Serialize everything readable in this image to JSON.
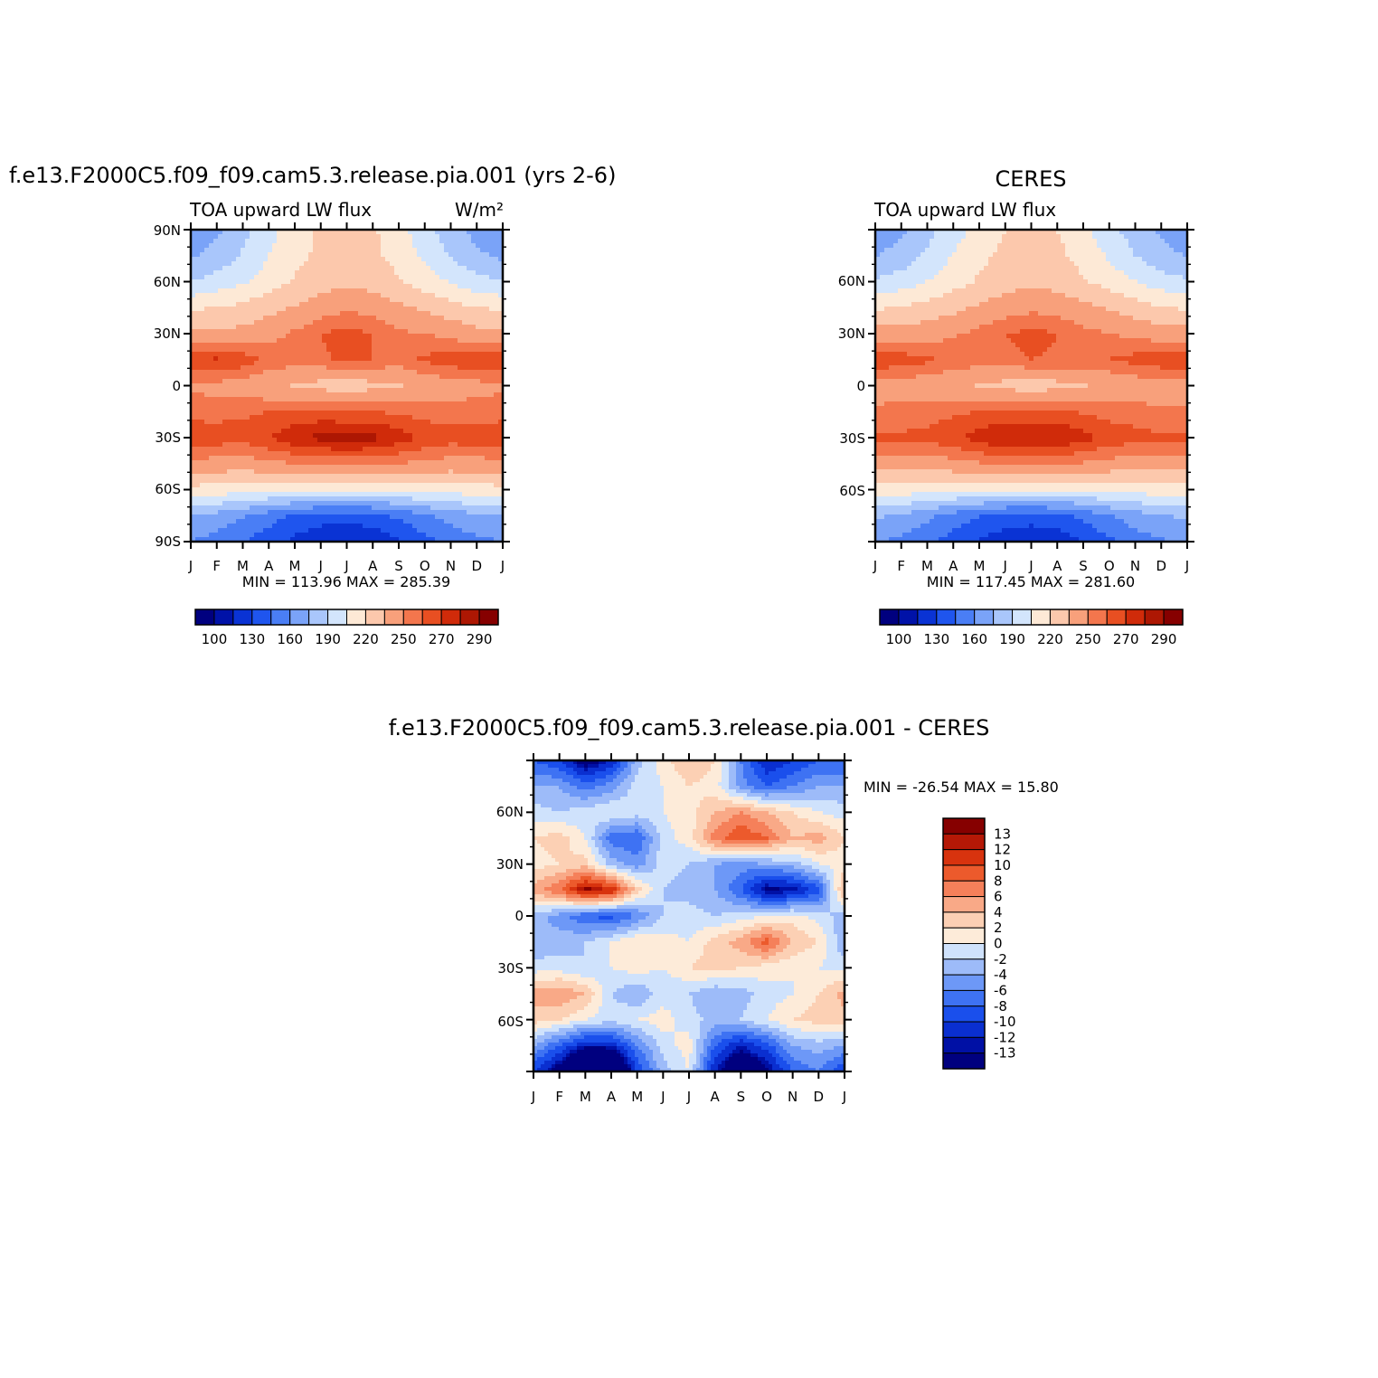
{
  "months": [
    "J",
    "F",
    "M",
    "A",
    "M",
    "J",
    "J",
    "A",
    "S",
    "O",
    "N",
    "D",
    "J"
  ],
  "colors": {
    "abs": [
      "#00007f",
      "#0012a8",
      "#0a33d4",
      "#1f55ee",
      "#4a7ef5",
      "#7aa3f8",
      "#a9c6fb",
      "#d3e5fc",
      "#fde9d6",
      "#fcc8ac",
      "#f8a07b",
      "#f3764d",
      "#e84f22",
      "#d02b0a",
      "#ad1703",
      "#860000"
    ],
    "diff": [
      "#00007f",
      "#0010a5",
      "#0a2fd0",
      "#1a4fec",
      "#3e72f3",
      "#6d98f7",
      "#9dbbf9",
      "#cfe2fc",
      "#fdebd9",
      "#fcd0b4",
      "#f9a987",
      "#f5805a",
      "#ec5a2c",
      "#d8330e",
      "#b51806",
      "#860000"
    ]
  },
  "panels": [
    {
      "id": "model",
      "title": "f.e13.F2000C5.f09_f09.cam5.3.release.pia.001 (yrs 2-6)",
      "left_label": "TOA upward LW flux",
      "units": "W/m²",
      "y_ticks": [
        "90N",
        "60N",
        "30N",
        "0",
        "30S",
        "60S",
        "90S"
      ],
      "stats": "MIN = 113.96 MAX = 285.39",
      "colorbar_labels": [
        "100",
        "130",
        "160",
        "190",
        "220",
        "250",
        "270",
        "290"
      ]
    },
    {
      "id": "ceres",
      "title": "CERES",
      "left_label": "TOA upward LW flux",
      "units": "",
      "y_ticks": [
        "60N",
        "30N",
        "0",
        "30S",
        "60S"
      ],
      "stats": "MIN = 117.45 MAX = 281.60",
      "colorbar_labels": [
        "100",
        "130",
        "160",
        "190",
        "220",
        "250",
        "270",
        "290"
      ]
    },
    {
      "id": "diff",
      "title": "f.e13.F2000C5.f09_f09.cam5.3.release.pia.001 - CERES",
      "y_ticks": [
        "60N",
        "30N",
        "0",
        "30S",
        "60S"
      ],
      "stats": "MIN = -26.54 MAX = 15.80",
      "colorbar_labels": [
        "13",
        "12",
        "10",
        "8",
        "6",
        "4",
        "2",
        "0",
        "-2",
        "-4",
        "-6",
        "-8",
        "-10",
        "-12",
        "-13"
      ]
    }
  ],
  "chart_data": [
    {
      "type": "heatmap",
      "title": "f.e13.F2000C5.f09_f09.cam5.3.release.pia.001 (yrs 2-6)",
      "variable": "TOA upward LW flux",
      "units": "W/m²",
      "x": [
        "J",
        "F",
        "M",
        "A",
        "M",
        "J",
        "J",
        "A",
        "S",
        "O",
        "N",
        "D",
        "J"
      ],
      "y": [
        90,
        75,
        60,
        45,
        30,
        15,
        0,
        -15,
        -30,
        -45,
        -60,
        -75,
        -90
      ],
      "ylim": [
        -90,
        90
      ],
      "levels": [
        100,
        115,
        130,
        145,
        160,
        175,
        190,
        205,
        220,
        235,
        250,
        260,
        270,
        280,
        290
      ],
      "min": 113.96,
      "max": 285.39,
      "values": [
        [
          163,
          172,
          185,
          200,
          212,
          222,
          225,
          222,
          210,
          196,
          182,
          170,
          163
        ],
        [
          172,
          180,
          192,
          205,
          215,
          224,
          228,
          224,
          214,
          202,
          189,
          178,
          172
        ],
        [
          190,
          196,
          203,
          212,
          222,
          228,
          232,
          229,
          222,
          213,
          204,
          195,
          190
        ],
        [
          218,
          220,
          224,
          230,
          236,
          243,
          248,
          245,
          238,
          232,
          226,
          220,
          218
        ],
        [
          238,
          238,
          240,
          245,
          252,
          260,
          264,
          260,
          252,
          250,
          246,
          240,
          238
        ],
        [
          268,
          272,
          266,
          258,
          255,
          258,
          262,
          260,
          256,
          262,
          266,
          268,
          268
        ],
        [
          248,
          246,
          244,
          238,
          234,
          230,
          228,
          230,
          234,
          240,
          244,
          246,
          248
        ],
        [
          255,
          256,
          258,
          260,
          262,
          262,
          260,
          260,
          258,
          256,
          254,
          255,
          255
        ],
        [
          268,
          266,
          264,
          270,
          278,
          283,
          285,
          283,
          276,
          268,
          265,
          266,
          268
        ],
        [
          246,
          245,
          244,
          247,
          250,
          252,
          253,
          252,
          250,
          247,
          245,
          245,
          246
        ],
        [
          215,
          214,
          212,
          210,
          208,
          206,
          205,
          206,
          208,
          210,
          212,
          214,
          215
        ],
        [
          175,
          170,
          162,
          152,
          143,
          138,
          137,
          140,
          148,
          158,
          166,
          172,
          175
        ],
        [
          160,
          154,
          146,
          136,
          126,
          118,
          114,
          118,
          128,
          140,
          150,
          156,
          160
        ]
      ]
    },
    {
      "type": "heatmap",
      "title": "CERES",
      "variable": "TOA upward LW flux",
      "x": [
        "J",
        "F",
        "M",
        "A",
        "M",
        "J",
        "J",
        "A",
        "S",
        "O",
        "N",
        "D",
        "J"
      ],
      "y": [
        90,
        75,
        60,
        45,
        30,
        15,
        0,
        -15,
        -30,
        -45,
        -60,
        -75,
        -90
      ],
      "ylim": [
        -90,
        90
      ],
      "levels": [
        100,
        115,
        130,
        145,
        160,
        175,
        190,
        205,
        220,
        235,
        250,
        260,
        270,
        280,
        290
      ],
      "min": 117.45,
      "max": 281.6,
      "values": [
        [
          165,
          172,
          185,
          198,
          210,
          220,
          224,
          220,
          208,
          195,
          182,
          172,
          165
        ],
        [
          174,
          181,
          193,
          206,
          216,
          224,
          228,
          224,
          214,
          203,
          190,
          180,
          174
        ],
        [
          192,
          197,
          205,
          214,
          222,
          229,
          232,
          229,
          222,
          214,
          205,
          197,
          192
        ],
        [
          218,
          221,
          225,
          231,
          237,
          243,
          247,
          245,
          239,
          233,
          227,
          221,
          218
        ],
        [
          242,
          242,
          244,
          248,
          254,
          260,
          263,
          260,
          254,
          250,
          247,
          243,
          242
        ],
        [
          268,
          266,
          262,
          258,
          256,
          258,
          260,
          259,
          257,
          260,
          264,
          267,
          268
        ],
        [
          245,
          244,
          242,
          238,
          234,
          230,
          228,
          230,
          234,
          238,
          242,
          244,
          245
        ],
        [
          252,
          253,
          255,
          258,
          260,
          262,
          262,
          262,
          259,
          256,
          254,
          252,
          252
        ],
        [
          262,
          262,
          263,
          268,
          275,
          280,
          281,
          280,
          274,
          267,
          264,
          262,
          262
        ],
        [
          244,
          244,
          244,
          246,
          249,
          251,
          252,
          251,
          249,
          246,
          244,
          244,
          244
        ],
        [
          214,
          213,
          212,
          210,
          208,
          206,
          205,
          206,
          208,
          210,
          212,
          213,
          214
        ],
        [
          178,
          172,
          164,
          154,
          146,
          140,
          138,
          141,
          149,
          159,
          168,
          174,
          178
        ],
        [
          162,
          156,
          148,
          138,
          128,
          120,
          117,
          120,
          130,
          142,
          152,
          158,
          162
        ]
      ]
    },
    {
      "type": "heatmap",
      "title": "f.e13.F2000C5.f09_f09.cam5.3.release.pia.001 - CERES",
      "x": [
        "J",
        "F",
        "M",
        "A",
        "M",
        "J",
        "J",
        "A",
        "S",
        "O",
        "N",
        "D",
        "J"
      ],
      "y": [
        90,
        75,
        60,
        45,
        30,
        15,
        0,
        -15,
        -30,
        -45,
        -60,
        -75,
        -90
      ],
      "ylim": [
        -90,
        90
      ],
      "levels": [
        -13,
        -12,
        -10,
        -8,
        -6,
        -4,
        -2,
        0,
        2,
        4,
        6,
        8,
        10,
        12,
        13
      ],
      "min": -26.54,
      "max": 15.8,
      "values": [
        [
          -8,
          -10,
          -15,
          -12,
          -3,
          1,
          4,
          2,
          -6,
          -12,
          -10,
          -8,
          -8
        ],
        [
          -4,
          -4,
          -7,
          -5,
          -1,
          0,
          2,
          1,
          -5,
          -8,
          -6,
          -4,
          -4
        ],
        [
          -1,
          -2,
          -1,
          0,
          -1,
          0,
          1,
          4,
          6,
          4,
          2,
          0,
          -1
        ],
        [
          2,
          3,
          0,
          -7,
          -8,
          -1,
          1,
          7,
          10,
          8,
          4,
          5,
          2
        ],
        [
          1,
          2,
          3,
          -3,
          -5,
          -1,
          -2,
          -4,
          -5,
          -4,
          -3,
          0,
          1
        ],
        [
          5,
          8,
          14,
          12,
          3,
          -2,
          -3,
          -4,
          -8,
          -14,
          -13,
          -9,
          5
        ],
        [
          -3,
          -5,
          -8,
          -9,
          -6,
          -2,
          -1,
          -2,
          -1,
          0,
          1,
          -1,
          -3
        ],
        [
          -4,
          -3,
          -2,
          0,
          2,
          1,
          0,
          3,
          5,
          9,
          4,
          2,
          -4
        ],
        [
          -1,
          -1,
          -2,
          0,
          1,
          0,
          2,
          3,
          2,
          1,
          0,
          0,
          -1
        ],
        [
          5,
          6,
          4,
          -2,
          -4,
          -1,
          -2,
          -4,
          -3,
          -1,
          0,
          2,
          5
        ],
        [
          3,
          2,
          0,
          -1,
          0,
          1,
          -1,
          -3,
          -2,
          0,
          2,
          3,
          3
        ],
        [
          -4,
          -8,
          -12,
          -12,
          -6,
          -1,
          1,
          -8,
          -12,
          -9,
          -4,
          -3,
          -4
        ],
        [
          -10,
          -15,
          -25,
          -22,
          -10,
          -3,
          0,
          -12,
          -18,
          -14,
          -8,
          -6,
          -10
        ]
      ]
    }
  ]
}
